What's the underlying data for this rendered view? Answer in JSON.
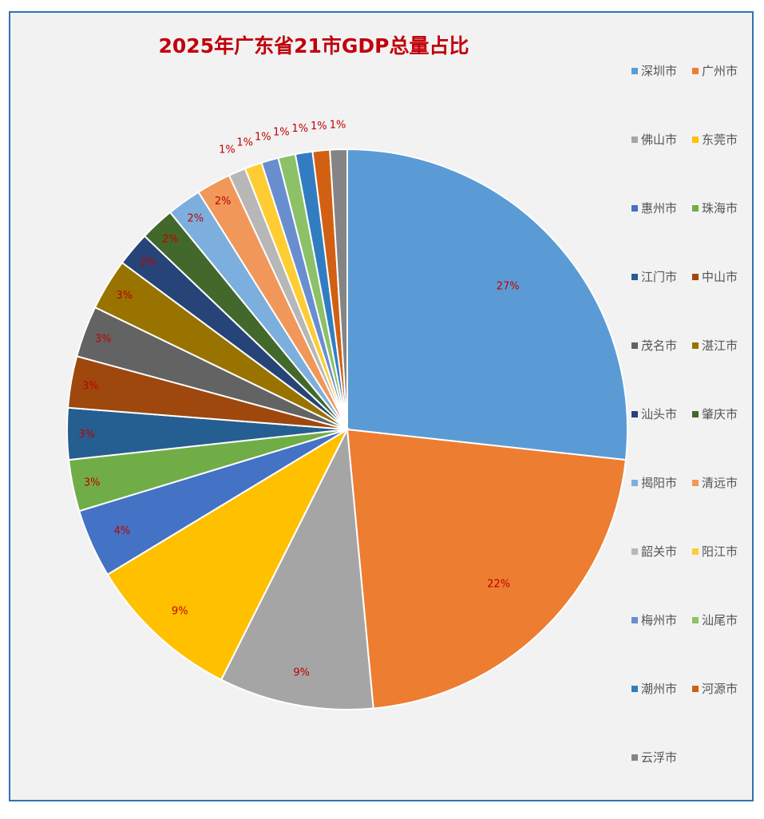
{
  "chart_data": {
    "type": "pie",
    "title": "2025年广东省21市GDP总量占比",
    "legend_position": "right",
    "slices": [
      {
        "name": "深圳市",
        "value": 27,
        "label": "27%",
        "color": "#5b9bd5"
      },
      {
        "name": "广州市",
        "value": 22,
        "label": "22%",
        "color": "#ed7d31"
      },
      {
        "name": "佛山市",
        "value": 9,
        "label": "9%",
        "color": "#a5a5a5"
      },
      {
        "name": "东莞市",
        "value": 9,
        "label": "9%",
        "color": "#ffc000"
      },
      {
        "name": "惠州市",
        "value": 4,
        "label": "4%",
        "color": "#4472c4"
      },
      {
        "name": "珠海市",
        "value": 3,
        "label": "3%",
        "color": "#70ad47"
      },
      {
        "name": "江门市",
        "value": 3,
        "label": "3%",
        "color": "#255e91"
      },
      {
        "name": "中山市",
        "value": 3,
        "label": "3%",
        "color": "#9e480e"
      },
      {
        "name": "茂名市",
        "value": 3,
        "label": "3%",
        "color": "#636363"
      },
      {
        "name": "湛江市",
        "value": 3,
        "label": "3%",
        "color": "#997300"
      },
      {
        "name": "汕头市",
        "value": 2,
        "label": "2%",
        "color": "#264478"
      },
      {
        "name": "肇庆市",
        "value": 2,
        "label": "2%",
        "color": "#43682b"
      },
      {
        "name": "揭阳市",
        "value": 2,
        "label": "2%",
        "color": "#7cafdd"
      },
      {
        "name": "清远市",
        "value": 2,
        "label": "2%",
        "color": "#f1975a"
      },
      {
        "name": "韶关市",
        "value": 1,
        "label": "1%",
        "color": "#b7b7b7"
      },
      {
        "name": "阳江市",
        "value": 1,
        "label": "1%",
        "color": "#ffcd33"
      },
      {
        "name": "梅州市",
        "value": 1,
        "label": "1%",
        "color": "#698ed0"
      },
      {
        "name": "汕尾市",
        "value": 1,
        "label": "1%",
        "color": "#8cc168"
      },
      {
        "name": "潮州市",
        "value": 1,
        "label": "1%",
        "color": "#327dc2"
      },
      {
        "name": "河源市",
        "value": 1,
        "label": "1%",
        "color": "#d26012"
      },
      {
        "name": "云浮市",
        "value": 1,
        "label": "1%",
        "color": "#848484"
      }
    ]
  }
}
